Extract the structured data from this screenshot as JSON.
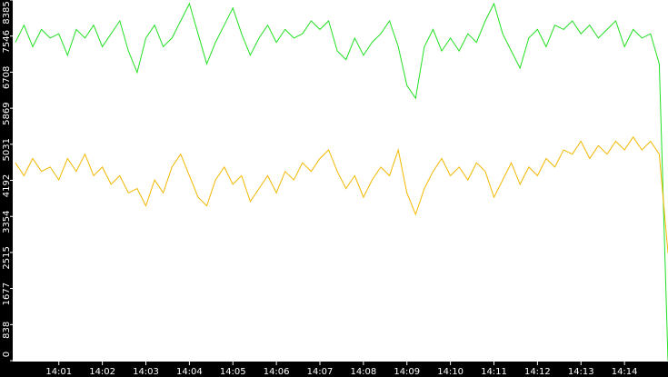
{
  "chart_data": {
    "type": "line",
    "x": [
      0,
      0.2,
      0.4,
      0.6,
      0.8,
      1,
      1.2,
      1.4,
      1.6,
      1.8,
      2,
      2.2,
      2.4,
      2.6,
      2.8,
      3,
      3.2,
      3.4,
      3.6,
      3.8,
      4,
      4.2,
      4.4,
      4.6,
      4.8,
      5,
      5.2,
      5.4,
      5.6,
      5.8,
      6,
      6.2,
      6.4,
      6.6,
      6.8,
      7,
      7.2,
      7.4,
      7.6,
      7.8,
      8,
      8.2,
      8.4,
      8.6,
      8.8,
      9,
      9.2,
      9.4,
      9.6,
      9.8,
      10,
      10.2,
      10.4,
      10.6,
      10.8,
      11,
      11.2,
      11.4,
      11.6,
      11.8,
      12,
      12.2,
      12.4,
      12.6,
      12.8,
      13,
      13.2,
      13.4,
      13.6,
      13.8,
      14,
      14.2,
      14.4,
      14.6,
      14.8,
      15
    ],
    "series": [
      {
        "color": "#22e022",
        "values": [
          7400,
          7800,
          7300,
          7700,
          7500,
          7600,
          7100,
          7700,
          7500,
          7800,
          7300,
          7600,
          7900,
          7200,
          6700,
          7500,
          7800,
          7300,
          7500,
          7900,
          8300,
          7600,
          6900,
          7400,
          7800,
          8200,
          7600,
          7100,
          7500,
          7800,
          7400,
          7700,
          7500,
          7600,
          7900,
          7700,
          7900,
          7200,
          7000,
          7500,
          7100,
          7400,
          7600,
          7900,
          7300,
          6400,
          6100,
          7300,
          7700,
          7200,
          7500,
          7200,
          7600,
          7400,
          7900,
          8300,
          7600,
          7200,
          6800,
          7500,
          7700,
          7300,
          7800,
          7700,
          7900,
          7600,
          7800,
          7500,
          7700,
          7900,
          7300,
          7700,
          7500,
          7600,
          6900,
          0
        ]
      },
      {
        "color": "#f2b800",
        "values": [
          4600,
          4300,
          4700,
          4400,
          4500,
          4200,
          4700,
          4400,
          4800,
          4300,
          4500,
          4100,
          4300,
          3900,
          4000,
          3600,
          4200,
          3900,
          4500,
          4800,
          4300,
          3800,
          3600,
          4200,
          4500,
          4100,
          4300,
          3700,
          4000,
          4300,
          3900,
          4400,
          4200,
          4600,
          4400,
          4700,
          4900,
          4400,
          4000,
          4300,
          3800,
          4200,
          4500,
          4300,
          4900,
          3900,
          3400,
          4000,
          4400,
          4700,
          4300,
          4500,
          4200,
          4600,
          4400,
          3800,
          4200,
          4600,
          4100,
          4500,
          4300,
          4700,
          4500,
          4900,
          4800,
          5100,
          4700,
          5000,
          4800,
          5100,
          4900,
          5200,
          4900,
          5100,
          4800,
          2500
        ]
      }
    ],
    "xlim": [
      -0.06,
      15
    ],
    "xticks": [
      {
        "value": 1,
        "label": "14:01"
      },
      {
        "value": 2,
        "label": "14:02"
      },
      {
        "value": 3,
        "label": "14:03"
      },
      {
        "value": 4,
        "label": "14:04"
      },
      {
        "value": 5,
        "label": "14:05"
      },
      {
        "value": 6,
        "label": "14:06"
      },
      {
        "value": 7,
        "label": "14:07"
      },
      {
        "value": 8,
        "label": "14:08"
      },
      {
        "value": 9,
        "label": "14:09"
      },
      {
        "value": 10,
        "label": "14:10"
      },
      {
        "value": 11,
        "label": "14:11"
      },
      {
        "value": 12,
        "label": "14:12"
      },
      {
        "value": 13,
        "label": "14:13"
      },
      {
        "value": 14,
        "label": "14:14"
      }
    ],
    "ylim": [
      0,
      8385
    ],
    "yticks": [
      0,
      838,
      1677,
      2515,
      3354,
      4192,
      5031,
      5869,
      6708,
      7546,
      8385
    ]
  }
}
